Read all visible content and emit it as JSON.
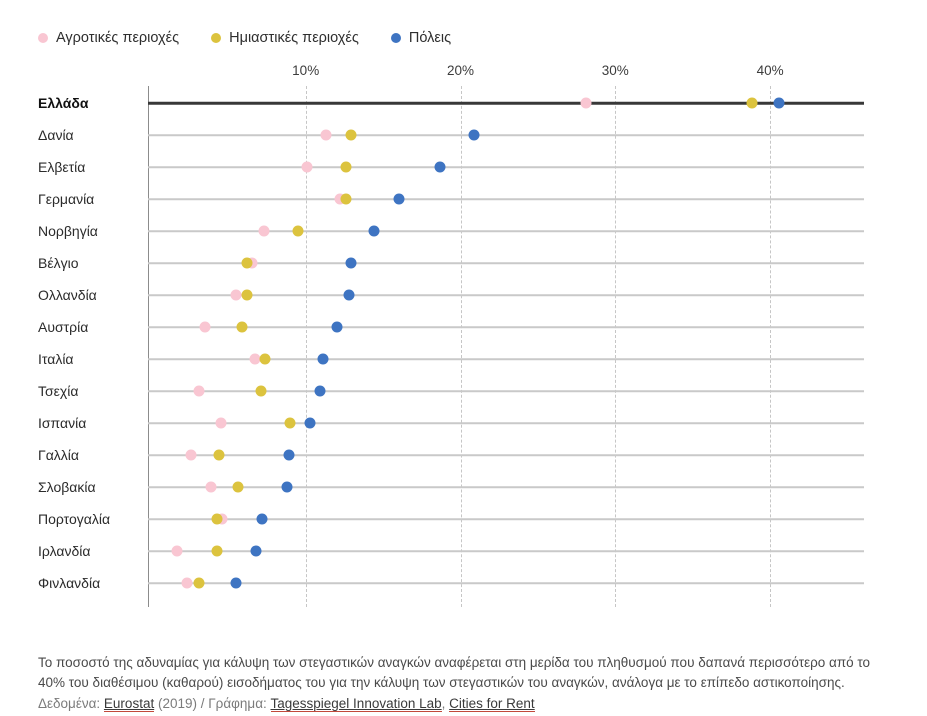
{
  "legend": {
    "items": [
      {
        "label": "Αγροτικές περιοχές",
        "color": "#f9c6d2"
      },
      {
        "label": "Ημιαστικές περιοχές",
        "color": "#dcc33e"
      },
      {
        "label": "Πόλεις",
        "color": "#3e74c2"
      }
    ]
  },
  "axis": {
    "ticks": [
      {
        "label": "10%",
        "value": 10
      },
      {
        "label": "20%",
        "value": 20
      },
      {
        "label": "30%",
        "value": 30
      },
      {
        "label": "40%",
        "value": 40
      }
    ]
  },
  "chart_data": {
    "type": "scatter",
    "subtype": "dot-plot",
    "unit": "%",
    "xlim": [
      0,
      46
    ],
    "grid": "vertical-dashed",
    "highlight_category": "Ελλάδα",
    "categories": [
      "Ελλάδα",
      "Δανία",
      "Ελβετία",
      "Γερμανία",
      "Νορβηγία",
      "Βέλγιο",
      "Ολλανδία",
      "Αυστρία",
      "Ιταλία",
      "Τσεχία",
      "Ισπανία",
      "Γαλλία",
      "Σλοβακία",
      "Πορτογαλία",
      "Ιρλανδία",
      "Φινλανδία"
    ],
    "series": [
      {
        "name": "Αγροτικές περιοχές",
        "color": "#f9c6d2",
        "values": [
          28.1,
          11.3,
          10.1,
          12.2,
          7.3,
          6.5,
          5.5,
          3.5,
          6.7,
          3.1,
          4.5,
          2.6,
          3.9,
          4.6,
          1.7,
          2.3
        ]
      },
      {
        "name": "Ημιαστικές περιοχές",
        "color": "#dcc33e",
        "values": [
          38.8,
          12.9,
          12.6,
          12.6,
          9.5,
          6.2,
          6.2,
          5.9,
          7.4,
          7.1,
          9.0,
          4.4,
          5.6,
          4.3,
          4.3,
          3.1
        ]
      },
      {
        "name": "Πόλεις",
        "color": "#3e74c2",
        "values": [
          40.6,
          20.9,
          18.7,
          16.0,
          14.4,
          12.9,
          12.8,
          12.0,
          11.1,
          10.9,
          10.3,
          8.9,
          8.8,
          7.2,
          6.8,
          5.5
        ]
      }
    ]
  },
  "footnote": "Το ποσοστό της αδυναμίας για κάλυψη των στεγαστικών αναγκών αναφέρεται στη μερίδα του πληθυσμού που δαπανά περισσότερο από το 40% του διαθέσιμου (καθαρού) εισοδήματος του για την κάλυψη των στεγαστικών του αναγκών, ανάλογα με το επίπεδο αστικοποίησης.",
  "credits": {
    "prefix": "Δεδομένα: ",
    "source_link": "Eurostat",
    "middle": " (2019) / Γράφημα: ",
    "lab_link": "Tagesspiegel Innovation Lab",
    "separator": ", ",
    "project_link": "Cities for Rent"
  }
}
